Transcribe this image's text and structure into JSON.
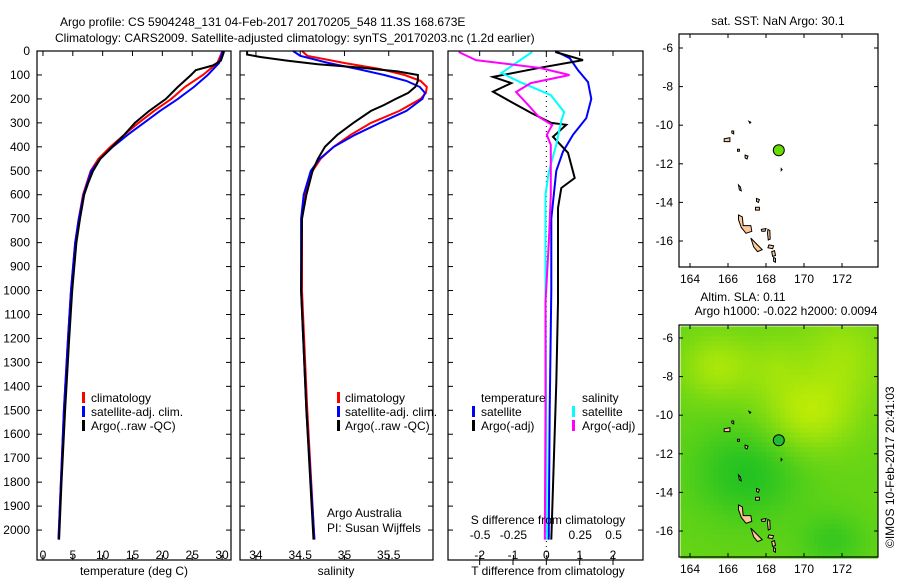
{
  "title_line1": "Argo profile: CS 5904248_131 04-Feb-2017 20170205_548 11.3S 168.673E",
  "title_line2": "Climatology: CARS2009. Satellite-adjusted climatology: synTS_20170203.nc (1.2d earlier)",
  "credit_1": "Argo Australia",
  "credit_2": "PI: Susan Wijffels",
  "stamp": "©IMOS 10-Feb-2017 20:41:03",
  "colors": {
    "climatology": "#ff0000",
    "satellite": "#0000ff",
    "argo": "#000000",
    "sal_satellite": "#00ffff",
    "sal_argo": "#ff00ff",
    "float_marker": "#66dd00",
    "land": "#ffc896"
  },
  "chart_data": [
    {
      "type": "line",
      "name": "temperature-profile",
      "xlabel": "temperature (deg C)",
      "ylabel": "",
      "xlim": [
        -1,
        31.5
      ],
      "ylim": [
        2125,
        0
      ],
      "xticks": [
        0,
        5,
        10,
        15,
        20,
        25,
        30
      ],
      "yticks": [
        0,
        100,
        200,
        300,
        400,
        500,
        600,
        700,
        800,
        900,
        1000,
        1100,
        1200,
        1300,
        1400,
        1500,
        1600,
        1700,
        1800,
        1900,
        2000
      ],
      "legend": [
        "climatology",
        "satellite-adj. clim.",
        "Argo(..raw -QC)"
      ],
      "legend_position": "lower-middle",
      "series": [
        {
          "name": "climatology",
          "color": "#ff0000",
          "depth": [
            0,
            10,
            50,
            100,
            150,
            200,
            250,
            300,
            350,
            400,
            450,
            500,
            600,
            700,
            800,
            1000,
            1200,
            1500,
            1800,
            2040
          ],
          "values": [
            30.0,
            29.9,
            29.2,
            26.8,
            23.8,
            21.5,
            18.6,
            16.0,
            13.6,
            11.3,
            9.3,
            8.0,
            6.7,
            6.0,
            5.4,
            4.7,
            4.2,
            3.5,
            3.0,
            2.6
          ]
        },
        {
          "name": "satellite-adj. clim.",
          "color": "#0000ff",
          "depth": [
            0,
            10,
            50,
            100,
            150,
            200,
            250,
            300,
            350,
            400,
            450,
            500,
            600,
            700,
            800,
            1000,
            1200,
            1500,
            1800,
            2040
          ],
          "values": [
            30.1,
            30.0,
            29.5,
            27.6,
            25.3,
            22.6,
            19.6,
            16.9,
            14.2,
            11.7,
            9.6,
            8.1,
            6.8,
            6.0,
            5.4,
            4.7,
            4.2,
            3.5,
            3.0,
            2.6
          ]
        },
        {
          "name": "Argo(..raw -QC)",
          "color": "#000000",
          "depth": [
            0,
            5,
            20,
            40,
            60,
            80,
            100,
            150,
            200,
            250,
            300,
            350,
            400,
            450,
            500,
            550,
            600,
            700,
            800,
            1000,
            1200,
            1500,
            1800,
            2040
          ],
          "values": [
            30.3,
            30.3,
            30.1,
            29.8,
            28.5,
            25.6,
            24.8,
            22.6,
            20.6,
            17.8,
            15.4,
            13.6,
            11.6,
            9.6,
            8.4,
            7.6,
            6.9,
            6.2,
            5.6,
            4.9,
            4.4,
            3.7,
            3.1,
            2.7
          ]
        }
      ]
    },
    {
      "type": "line",
      "name": "salinity-profile",
      "xlabel": "salinity",
      "xlim": [
        33.82,
        36.0
      ],
      "ylim": [
        2125,
        0
      ],
      "xticks": [
        34,
        34.5,
        35,
        35.5
      ],
      "legend": [
        "climatology",
        "satellite-adj. clim.",
        "Argo(..raw -QC)"
      ],
      "legend_position": "lower-middle",
      "series": [
        {
          "name": "climatology",
          "color": "#ff0000",
          "depth": [
            0,
            20,
            50,
            75,
            100,
            125,
            150,
            175,
            200,
            250,
            300,
            350,
            400,
            450,
            500,
            600,
            700,
            1000,
            1500,
            2040
          ],
          "values": [
            34.52,
            34.58,
            35.0,
            35.4,
            35.68,
            35.86,
            35.93,
            35.92,
            35.86,
            35.62,
            35.3,
            35.07,
            34.88,
            34.73,
            34.64,
            34.55,
            34.52,
            34.52,
            34.58,
            34.66
          ]
        },
        {
          "name": "satellite-adj. clim.",
          "color": "#0000ff",
          "depth": [
            0,
            20,
            50,
            75,
            100,
            125,
            150,
            175,
            200,
            250,
            300,
            350,
            400,
            450,
            500,
            600,
            700,
            1000,
            1500,
            2040
          ],
          "values": [
            34.42,
            34.5,
            34.82,
            35.15,
            35.45,
            35.7,
            35.85,
            35.91,
            35.88,
            35.7,
            35.4,
            35.12,
            34.88,
            34.72,
            34.62,
            34.54,
            34.51,
            34.51,
            34.57,
            34.66
          ]
        },
        {
          "name": "Argo(..raw -QC)",
          "color": "#000000",
          "depth": [
            0,
            15,
            25,
            40,
            55,
            70,
            85,
            100,
            125,
            150,
            175,
            200,
            225,
            250,
            300,
            350,
            400,
            450,
            500,
            600,
            700,
            1000,
            1500,
            2040
          ],
          "values": [
            33.9,
            33.9,
            34.05,
            34.35,
            34.7,
            35.2,
            35.6,
            35.83,
            35.83,
            35.8,
            35.72,
            35.58,
            35.45,
            35.3,
            35.1,
            34.92,
            34.78,
            34.7,
            34.64,
            34.57,
            34.52,
            34.51,
            34.57,
            34.65
          ]
        }
      ]
    },
    {
      "type": "line",
      "name": "difference-profile",
      "xlabel": "T difference from climatology",
      "xlabel_top": "S difference from climatology",
      "xlim_T": [
        -2.95,
        2.9
      ],
      "xlim_S": [
        -0.74,
        0.72
      ],
      "ylim": [
        2125,
        0
      ],
      "xticks_T": [
        "-2",
        "-1",
        "0",
        "1",
        "2"
      ],
      "xticks_T_values": [
        -2,
        -1,
        0,
        1,
        2
      ],
      "xticks_S": [
        "-0.5",
        "-0.25",
        "0",
        "0.25",
        "0.5"
      ],
      "xticks_S_values": [
        -0.5,
        -0.25,
        0,
        0.25,
        0.5
      ],
      "legend_temperature_heading": "temperature",
      "legend_salinity_heading": "salinity",
      "legend": [
        "satellite",
        "Argo(-adj)",
        "satellite",
        "Argo(-adj)"
      ],
      "series": [
        {
          "name": "T satellite",
          "axis": "T",
          "color": "#0000ff",
          "depth": [
            0,
            30,
            80,
            130,
            200,
            280,
            350,
            420,
            500,
            700,
            1000,
            1500,
            2040
          ],
          "values": [
            0.27,
            0.7,
            0.95,
            1.25,
            1.35,
            1.2,
            0.8,
            0.5,
            0.3,
            0.15,
            0.15,
            0.1,
            0.07
          ]
        },
        {
          "name": "T Argo(-adj)",
          "axis": "T",
          "color": "#000000",
          "depth": [
            4,
            38,
            70,
            108,
            134,
            170,
            213,
            259,
            300,
            308,
            358,
            425,
            530,
            572,
            655,
            810,
            1048,
            1386,
            2040
          ],
          "values": [
            0.27,
            1.1,
            -0.2,
            -1.6,
            -1.05,
            -1.6,
            -1.05,
            -0.45,
            0.15,
            0.6,
            0.2,
            0.65,
            0.85,
            0.45,
            0.35,
            0.35,
            0.35,
            0.3,
            0.15
          ]
        },
        {
          "name": "S satellite",
          "axis": "S",
          "color": "#00ffff",
          "depth": [
            4,
            92,
            130,
            184,
            255,
            288,
            392,
            505,
            600,
            1000,
            1500,
            2040
          ],
          "values": [
            -0.11,
            -0.34,
            -0.2,
            0.03,
            0.13,
            0.11,
            0.07,
            0.015,
            -0.01,
            -0.01,
            -0.005,
            0.0
          ]
        },
        {
          "name": "S Argo(-adj)",
          "axis": "S",
          "color": "#ff00ff",
          "depth": [
            4,
            38,
            71,
            100,
            134,
            171,
            225,
            275,
            309,
            350,
            392,
            601,
            800,
            1048,
            1500,
            2040
          ],
          "values": [
            -0.66,
            -0.53,
            -0.05,
            0.17,
            -0.12,
            -0.23,
            -0.14,
            -0.06,
            0.04,
            0.0,
            0.03,
            0.03,
            0.015,
            -0.01,
            -0.01,
            -0.015
          ]
        }
      ]
    },
    {
      "type": "scatter",
      "name": "sst-map",
      "title": "sat. SST: NaN Argo: 30.1",
      "xlim": [
        163.5,
        173.9
      ],
      "ylim": [
        -17.3,
        -5.4
      ],
      "xticks": [
        164,
        166,
        168,
        170,
        172
      ],
      "yticks": [
        -6,
        -8,
        -10,
        -12,
        -14,
        -16
      ],
      "points": [
        {
          "lon": 168.673,
          "lat": -11.3
        }
      ]
    },
    {
      "type": "heatmap",
      "name": "sla-map",
      "title_1": "Altim. SLA: 0.11",
      "title_2": "Argo h1000: -0.022 h2000: 0.0094",
      "xlim": [
        163.5,
        173.9
      ],
      "ylim": [
        -17.3,
        -5.4
      ],
      "xticks": [
        164,
        166,
        168,
        170,
        172
      ],
      "yticks": [
        -6,
        -8,
        -10,
        -12,
        -14,
        -16
      ],
      "points": [
        {
          "lon": 168.673,
          "lat": -11.3
        }
      ]
    }
  ]
}
